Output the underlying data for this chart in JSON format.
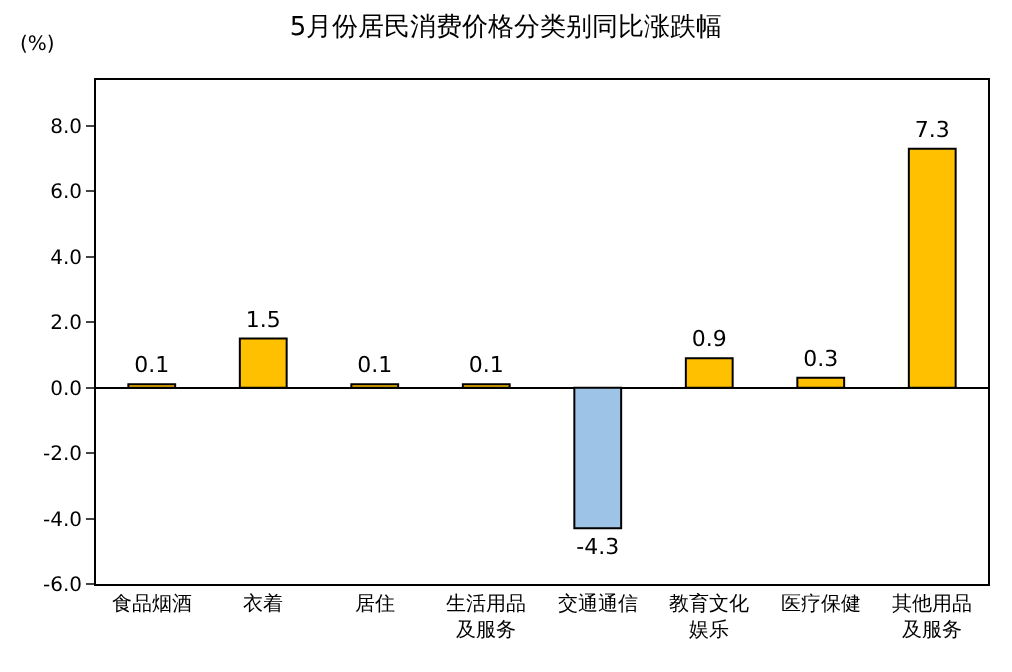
{
  "chart_data": {
    "type": "bar",
    "title": "5月份居民消费价格分类别同比涨跌幅",
    "ylabel": "(%)",
    "categories": [
      "食品烟酒",
      "衣着",
      "居住",
      "生活用品及服务",
      "交通通信",
      "教育文化娱乐",
      "医疗保健",
      "其他用品及服务"
    ],
    "values": [
      0.1,
      1.5,
      0.1,
      0.1,
      -4.3,
      0.9,
      0.3,
      7.3
    ],
    "colors": [
      "#ffc000",
      "#ffc000",
      "#ffc000",
      "#ffc000",
      "#9dc3e6",
      "#ffc000",
      "#ffc000",
      "#ffc000"
    ],
    "ylim": [
      -6,
      9.4
    ],
    "yticks": [
      {
        "value": -6,
        "label": "-6.0"
      },
      {
        "value": -4,
        "label": "-4.0"
      },
      {
        "value": -2,
        "label": "-2.0"
      },
      {
        "value": 0,
        "label": "0.0"
      },
      {
        "value": 2,
        "label": "2.0"
      },
      {
        "value": 4,
        "label": "4.0"
      },
      {
        "value": 6,
        "label": "6.0"
      },
      {
        "value": 8,
        "label": "8.0"
      }
    ],
    "data_labels": true,
    "legend": false
  }
}
